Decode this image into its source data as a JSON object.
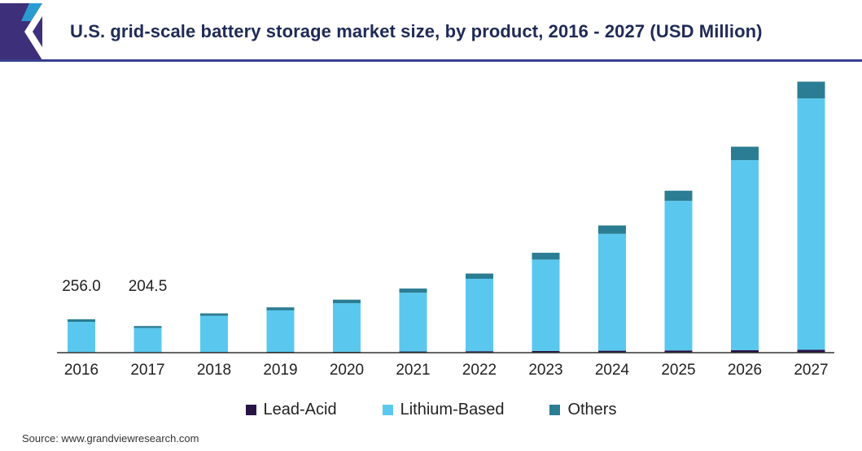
{
  "header": {
    "title": "U.S. grid-scale battery storage market size, by product, 2016 - 2027 (USD Million)",
    "brand_colors": {
      "logo_primary": "#3d2f7a",
      "logo_accent": "#2a9bd1",
      "rule": "#3a3f8f"
    }
  },
  "chart_data": {
    "type": "bar",
    "stacked": true,
    "categories": [
      "2016",
      "2017",
      "2018",
      "2019",
      "2020",
      "2021",
      "2022",
      "2023",
      "2024",
      "2025",
      "2026",
      "2027"
    ],
    "series": [
      {
        "name": "Lead-Acid",
        "color": "#2a1446",
        "values": [
          4,
          3,
          5,
          6,
          7,
          9,
          11,
          13,
          15,
          17,
          19,
          22
        ]
      },
      {
        "name": "Lithium-Based",
        "color": "#5ac8ee",
        "values": [
          232,
          186,
          277,
          318,
          372,
          450,
          555,
          700,
          895,
          1145,
          1455,
          1925
        ]
      },
      {
        "name": "Others",
        "color": "#2b7d93",
        "values": [
          20,
          15,
          19,
          23,
          27,
          32,
          40,
          52,
          64,
          78,
          103,
          128
        ]
      }
    ],
    "data_labels": [
      {
        "category": "2016",
        "text": "256.0"
      },
      {
        "category": "2017",
        "text": "204.5"
      }
    ],
    "ylim": [
      0,
      2190
    ],
    "y_axis_visible": false,
    "grid": false,
    "legend_position": "bottom",
    "title": "U.S. grid-scale battery storage market size, by product, 2016 - 2027 (USD Million)",
    "xlabel": "",
    "ylabel": ""
  },
  "source": "Source: www.grandviewresearch.com"
}
